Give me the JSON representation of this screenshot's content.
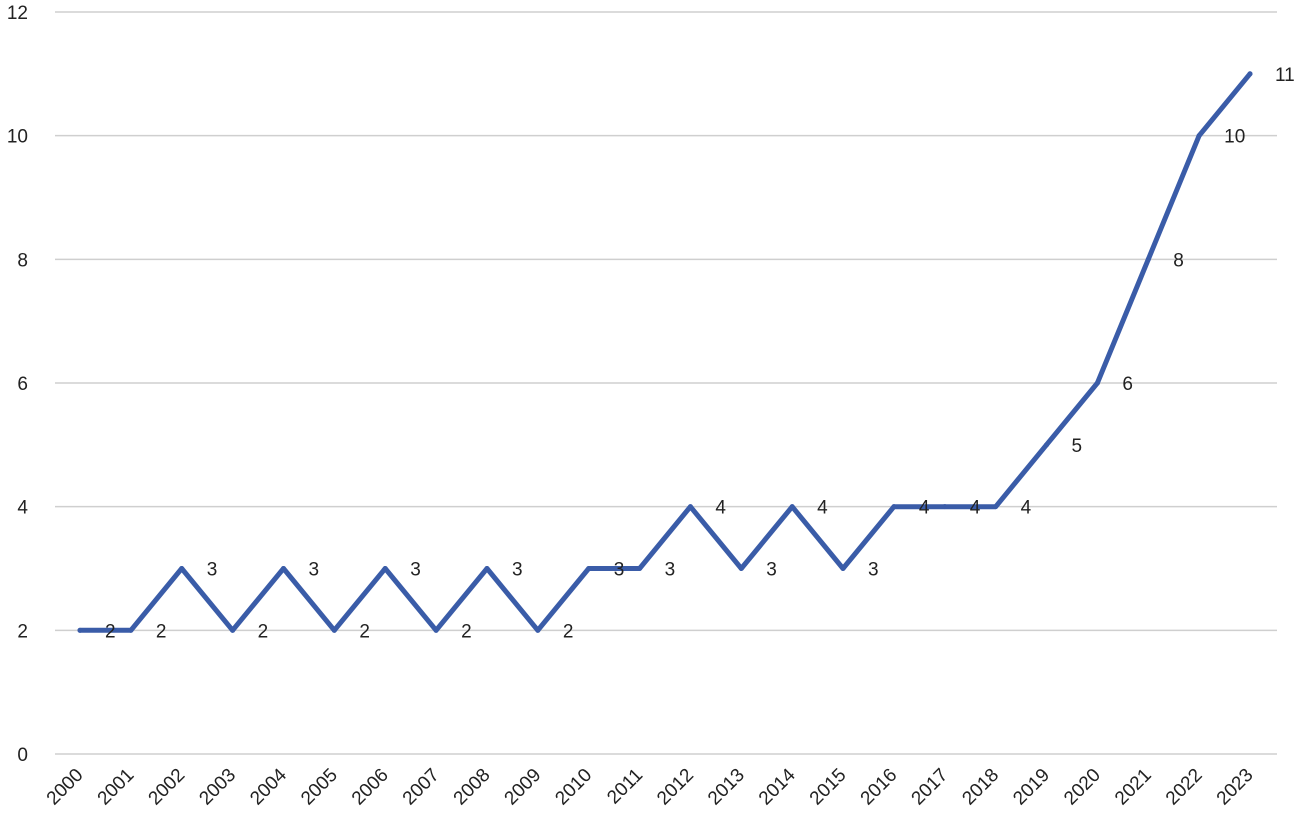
{
  "chart_data": {
    "type": "line",
    "title": "",
    "xlabel": "",
    "ylabel": "",
    "categories": [
      "2000",
      "2001",
      "2002",
      "2003",
      "2004",
      "2005",
      "2006",
      "2007",
      "2008",
      "2009",
      "2010",
      "2011",
      "2012",
      "2013",
      "2014",
      "2015",
      "2016",
      "2017",
      "2018",
      "2019",
      "2020",
      "2021",
      "2022",
      "2023"
    ],
    "series": [
      {
        "values": [
          2,
          2,
          3,
          2,
          3,
          2,
          3,
          2,
          3,
          2,
          3,
          3,
          4,
          3,
          4,
          3,
          4,
          4,
          4,
          5,
          6,
          8,
          10,
          11
        ],
        "color": "#3a5ca8"
      }
    ],
    "ylim": [
      0,
      12
    ],
    "yticks": [
      0,
      2,
      4,
      6,
      8,
      10,
      12
    ],
    "grid": true,
    "legend": "none",
    "data_labels": true
  }
}
